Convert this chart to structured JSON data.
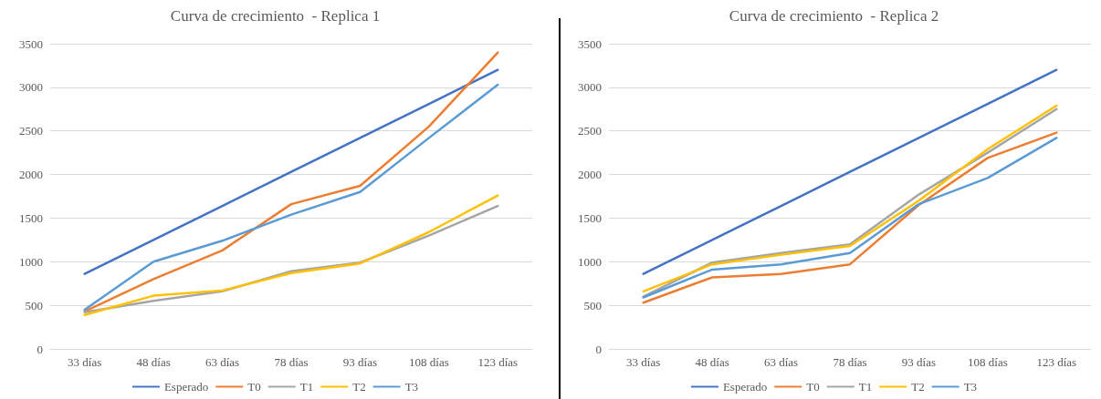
{
  "chart_data": [
    {
      "type": "line",
      "title": "Curva de crecimiento  - Replica 1",
      "categories": [
        "33 días",
        "48 días",
        "63 días",
        "78 días",
        "93 días",
        "108 días",
        "123 días"
      ],
      "series": [
        {
          "name": "Esperado",
          "color": "#4472c4",
          "values": [
            860,
            1250,
            1640,
            2030,
            2420,
            2810,
            3200
          ]
        },
        {
          "name": "T0",
          "color": "#ed7d31",
          "values": [
            430,
            800,
            1130,
            1660,
            1870,
            2550,
            3400
          ]
        },
        {
          "name": "T1",
          "color": "#a5a5a5",
          "values": [
            420,
            550,
            660,
            890,
            990,
            1300,
            1640
          ]
        },
        {
          "name": "T2",
          "color": "#ffc000",
          "values": [
            390,
            610,
            670,
            870,
            980,
            1340,
            1760
          ]
        },
        {
          "name": "T3",
          "color": "#5b9bd5",
          "values": [
            450,
            1000,
            1240,
            1540,
            1800,
            2420,
            3030
          ]
        }
      ],
      "ylim": [
        0,
        3500
      ],
      "yticks": [
        0,
        500,
        1000,
        1500,
        2000,
        2500,
        3000,
        3500
      ],
      "grid": "y",
      "legend": "bottom",
      "marker": "none",
      "line_style": "solid"
    },
    {
      "type": "line",
      "title": "Curva de crecimiento  - Replica 2",
      "categories": [
        "33 días",
        "48 días",
        "63 días",
        "78 días",
        "93 días",
        "108 días",
        "123 días"
      ],
      "series": [
        {
          "name": "Esperado",
          "color": "#4472c4",
          "values": [
            860,
            1250,
            1640,
            2030,
            2420,
            2810,
            3200
          ]
        },
        {
          "name": "T0",
          "color": "#ed7d31",
          "values": [
            530,
            820,
            860,
            970,
            1650,
            2190,
            2480
          ]
        },
        {
          "name": "T1",
          "color": "#a5a5a5",
          "values": [
            600,
            990,
            1100,
            1200,
            1770,
            2250,
            2750
          ]
        },
        {
          "name": "T2",
          "color": "#ffc000",
          "values": [
            660,
            970,
            1080,
            1180,
            1700,
            2290,
            2790
          ]
        },
        {
          "name": "T3",
          "color": "#5b9bd5",
          "values": [
            590,
            910,
            970,
            1100,
            1660,
            1960,
            2420
          ]
        }
      ],
      "ylim": [
        0,
        3500
      ],
      "yticks": [
        0,
        500,
        1000,
        1500,
        2000,
        2500,
        3000,
        3500
      ],
      "grid": "y",
      "legend": "bottom",
      "marker": "none",
      "line_style": "solid"
    }
  ]
}
